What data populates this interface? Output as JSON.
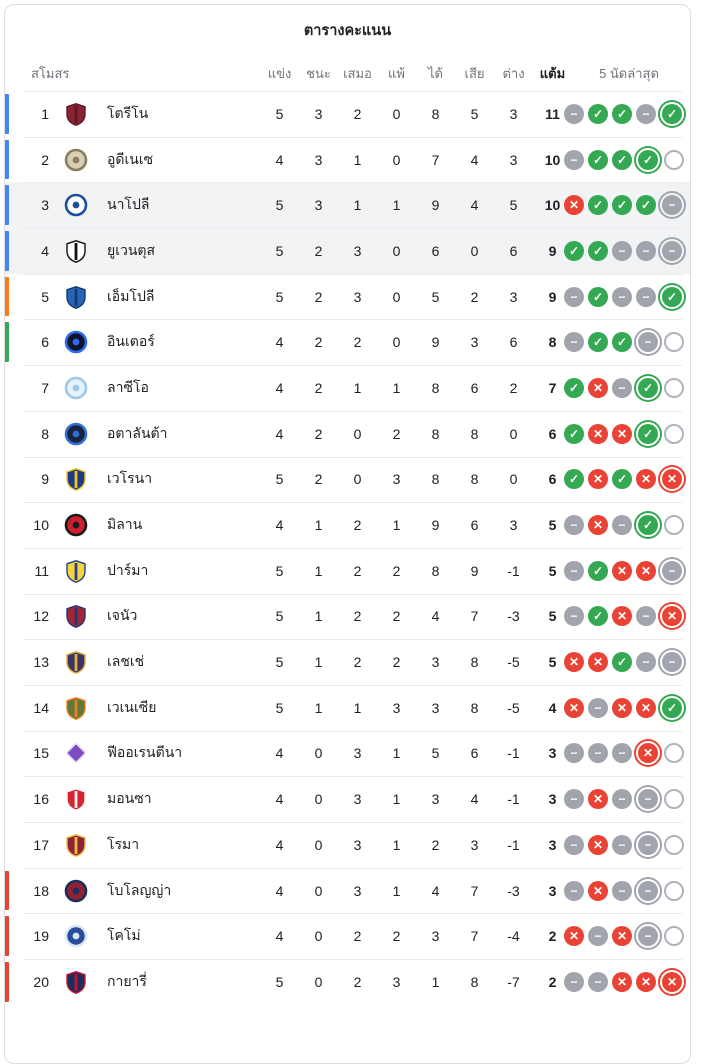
{
  "header": {
    "title": "ตารางคะแนน"
  },
  "columns": {
    "club": "สโมสร",
    "played": "แข่ง",
    "win": "ชนะ",
    "draw": "เสมอ",
    "loss": "แพ้",
    "gf": "ได้",
    "ga": "เสีย",
    "gd": "ต่าง",
    "pts": "แต้ม",
    "form": "5 นัดล่าสุด"
  },
  "form_colors": {
    "win": "#34a853",
    "loss": "#ea4335",
    "draw": "#a1a4ad",
    "upcoming_border": "#b0b3bc"
  },
  "qualification_colors": {
    "champions_league": "#4285f4",
    "europa_league": "#fa7b17",
    "conference_league": "#34a853",
    "relegation": "#ea4335"
  },
  "highlight_row_bg": "#f1f3f4",
  "table": {
    "rows": [
      {
        "pos": 1,
        "name": "โตรีโน",
        "bar": "champions_league",
        "highlighted": false,
        "played": 5,
        "win": 3,
        "draw": 2,
        "loss": 0,
        "gf": 8,
        "ga": 5,
        "gd": "3",
        "pts": 11,
        "form": [
          "D",
          "W",
          "W",
          "D",
          "W*"
        ],
        "logo": {
          "shape": "shield",
          "c1": "#8a2433",
          "c2": "#5e1622"
        }
      },
      {
        "pos": 2,
        "name": "อูดีเนเซ",
        "bar": "champions_league",
        "highlighted": false,
        "played": 4,
        "win": 3,
        "draw": 1,
        "loss": 0,
        "gf": 7,
        "ga": 4,
        "gd": "3",
        "pts": 10,
        "form": [
          "D",
          "W",
          "W",
          "W*",
          "U"
        ],
        "logo": {
          "shape": "circle",
          "c1": "#d9d0b2",
          "c2": "#877e5f"
        }
      },
      {
        "pos": 3,
        "name": "นาโปลี",
        "bar": "champions_league",
        "highlighted": true,
        "played": 5,
        "win": 3,
        "draw": 1,
        "loss": 1,
        "gf": 9,
        "ga": 4,
        "gd": "5",
        "pts": 10,
        "form": [
          "L",
          "W",
          "W",
          "W",
          "D*"
        ],
        "logo": {
          "shape": "circle",
          "c1": "#ffffff",
          "c2": "#1d4f9e"
        }
      },
      {
        "pos": 4,
        "name": "ยูเวนตุส",
        "bar": "champions_league",
        "highlighted": true,
        "played": 5,
        "win": 2,
        "draw": 3,
        "loss": 0,
        "gf": 6,
        "ga": 0,
        "gd": "6",
        "pts": 9,
        "form": [
          "W",
          "W",
          "D",
          "D",
          "D*"
        ],
        "logo": {
          "shape": "shield",
          "c1": "#ffffff",
          "c2": "#111111"
        }
      },
      {
        "pos": 5,
        "name": "เอ็มโปลี",
        "bar": "europa_league",
        "highlighted": false,
        "played": 5,
        "win": 2,
        "draw": 3,
        "loss": 0,
        "gf": 5,
        "ga": 2,
        "gd": "3",
        "pts": 9,
        "form": [
          "D",
          "W",
          "D",
          "D",
          "W*"
        ],
        "logo": {
          "shape": "shield",
          "c1": "#2a64b5",
          "c2": "#123a75"
        }
      },
      {
        "pos": 6,
        "name": "อินเตอร์",
        "bar": "conference_league",
        "highlighted": false,
        "played": 4,
        "win": 2,
        "draw": 2,
        "loss": 0,
        "gf": 9,
        "ga": 3,
        "gd": "6",
        "pts": 8,
        "form": [
          "D",
          "W",
          "W",
          "D*",
          "U"
        ],
        "logo": {
          "shape": "circle",
          "c1": "#0e1526",
          "c2": "#2e6af0"
        }
      },
      {
        "pos": 7,
        "name": "ลาซีโอ",
        "bar": null,
        "highlighted": false,
        "played": 4,
        "win": 2,
        "draw": 1,
        "loss": 1,
        "gf": 8,
        "ga": 6,
        "gd": "2",
        "pts": 7,
        "form": [
          "W",
          "L",
          "D",
          "W*",
          "U"
        ],
        "logo": {
          "shape": "circle",
          "c1": "#e8f2fa",
          "c2": "#9ec7e8"
        }
      },
      {
        "pos": 8,
        "name": "อตาลันต้า",
        "bar": null,
        "highlighted": false,
        "played": 4,
        "win": 2,
        "draw": 0,
        "loss": 2,
        "gf": 8,
        "ga": 8,
        "gd": "0",
        "pts": 6,
        "form": [
          "W",
          "L",
          "L",
          "W*",
          "U"
        ],
        "logo": {
          "shape": "circle",
          "c1": "#18233f",
          "c2": "#2f6fd1"
        }
      },
      {
        "pos": 9,
        "name": "เวโรนา",
        "bar": null,
        "highlighted": false,
        "played": 5,
        "win": 2,
        "draw": 0,
        "loss": 3,
        "gf": 8,
        "ga": 8,
        "gd": "0",
        "pts": 6,
        "form": [
          "W",
          "L",
          "W",
          "L",
          "L*"
        ],
        "logo": {
          "shape": "shield",
          "c1": "#1b3a8a",
          "c2": "#f5c51d"
        }
      },
      {
        "pos": 10,
        "name": "มิลาน",
        "bar": null,
        "highlighted": false,
        "played": 4,
        "win": 1,
        "draw": 2,
        "loss": 1,
        "gf": 9,
        "ga": 6,
        "gd": "3",
        "pts": 5,
        "form": [
          "D",
          "L",
          "D",
          "W*",
          "U"
        ],
        "logo": {
          "shape": "circle",
          "c1": "#cf1f2e",
          "c2": "#1a1a1a"
        }
      },
      {
        "pos": 11,
        "name": "ปาร์มา",
        "bar": null,
        "highlighted": false,
        "played": 5,
        "win": 1,
        "draw": 2,
        "loss": 2,
        "gf": 8,
        "ga": 9,
        "gd": "-1",
        "pts": 5,
        "form": [
          "D",
          "W",
          "L",
          "L",
          "D*"
        ],
        "logo": {
          "shape": "shield",
          "c1": "#f2d43c",
          "c2": "#27418f"
        }
      },
      {
        "pos": 12,
        "name": "เจนัว",
        "bar": null,
        "highlighted": false,
        "played": 5,
        "win": 1,
        "draw": 2,
        "loss": 2,
        "gf": 4,
        "ga": 7,
        "gd": "-3",
        "pts": 5,
        "form": [
          "D",
          "W",
          "L",
          "D",
          "L*"
        ],
        "logo": {
          "shape": "shield",
          "c1": "#a62234",
          "c2": "#1b3a74"
        }
      },
      {
        "pos": 13,
        "name": "เลชเช่",
        "bar": null,
        "highlighted": false,
        "played": 5,
        "win": 1,
        "draw": 2,
        "loss": 2,
        "gf": 3,
        "ga": 8,
        "gd": "-5",
        "pts": 5,
        "form": [
          "L",
          "L",
          "W",
          "D",
          "D*"
        ],
        "logo": {
          "shape": "shield",
          "c1": "#3a3566",
          "c2": "#e0b23c"
        }
      },
      {
        "pos": 14,
        "name": "เวเนเซีย",
        "bar": null,
        "highlighted": false,
        "played": 5,
        "win": 1,
        "draw": 1,
        "loss": 3,
        "gf": 3,
        "ga": 8,
        "gd": "-5",
        "pts": 4,
        "form": [
          "L",
          "D",
          "L",
          "L",
          "W*"
        ],
        "logo": {
          "shape": "shield",
          "c1": "#5d7a3a",
          "c2": "#ef7d22"
        }
      },
      {
        "pos": 15,
        "name": "ฟีออเรนตีนา",
        "bar": null,
        "highlighted": false,
        "played": 4,
        "win": 0,
        "draw": 3,
        "loss": 1,
        "gf": 5,
        "ga": 6,
        "gd": "-1",
        "pts": 3,
        "form": [
          "D",
          "D",
          "D",
          "L*",
          "U"
        ],
        "logo": {
          "shape": "diamond",
          "c1": "#7d4bc0",
          "c2": "#e3d7f7"
        }
      },
      {
        "pos": 16,
        "name": "มอนซา",
        "bar": null,
        "highlighted": false,
        "played": 4,
        "win": 0,
        "draw": 3,
        "loss": 1,
        "gf": 3,
        "ga": 4,
        "gd": "-1",
        "pts": 3,
        "form": [
          "D",
          "L",
          "D",
          "D*",
          "U"
        ],
        "logo": {
          "shape": "shield",
          "c1": "#d8242e",
          "c2": "#f3f3f3"
        }
      },
      {
        "pos": 17,
        "name": "โรมา",
        "bar": null,
        "highlighted": false,
        "played": 4,
        "win": 0,
        "draw": 3,
        "loss": 1,
        "gf": 2,
        "ga": 3,
        "gd": "-1",
        "pts": 3,
        "form": [
          "D",
          "L",
          "D",
          "D*",
          "U"
        ],
        "logo": {
          "shape": "shield",
          "c1": "#8e2436",
          "c2": "#f0bc42"
        }
      },
      {
        "pos": 18,
        "name": "โบโลญญ่า",
        "bar": "relegation",
        "highlighted": false,
        "played": 4,
        "win": 0,
        "draw": 3,
        "loss": 1,
        "gf": 4,
        "ga": 7,
        "gd": "-3",
        "pts": 3,
        "form": [
          "D",
          "L",
          "D",
          "D*",
          "U"
        ],
        "logo": {
          "shape": "circle",
          "c1": "#93202e",
          "c2": "#1b2f5e"
        }
      },
      {
        "pos": 19,
        "name": "โคโม่",
        "bar": "relegation",
        "highlighted": false,
        "played": 4,
        "win": 0,
        "draw": 2,
        "loss": 2,
        "gf": 3,
        "ga": 7,
        "gd": "-4",
        "pts": 2,
        "form": [
          "L",
          "D",
          "L",
          "D*",
          "U"
        ],
        "logo": {
          "shape": "circle",
          "c1": "#2a4d9b",
          "c2": "#dbe6f5"
        }
      },
      {
        "pos": 20,
        "name": "กายารี่",
        "bar": "relegation",
        "highlighted": false,
        "played": 5,
        "win": 0,
        "draw": 2,
        "loss": 3,
        "gf": 1,
        "ga": 8,
        "gd": "-7",
        "pts": 2,
        "form": [
          "D",
          "D",
          "L",
          "L",
          "L*"
        ],
        "logo": {
          "shape": "shield",
          "c1": "#1b2f5e",
          "c2": "#c8102e"
        }
      }
    ]
  }
}
